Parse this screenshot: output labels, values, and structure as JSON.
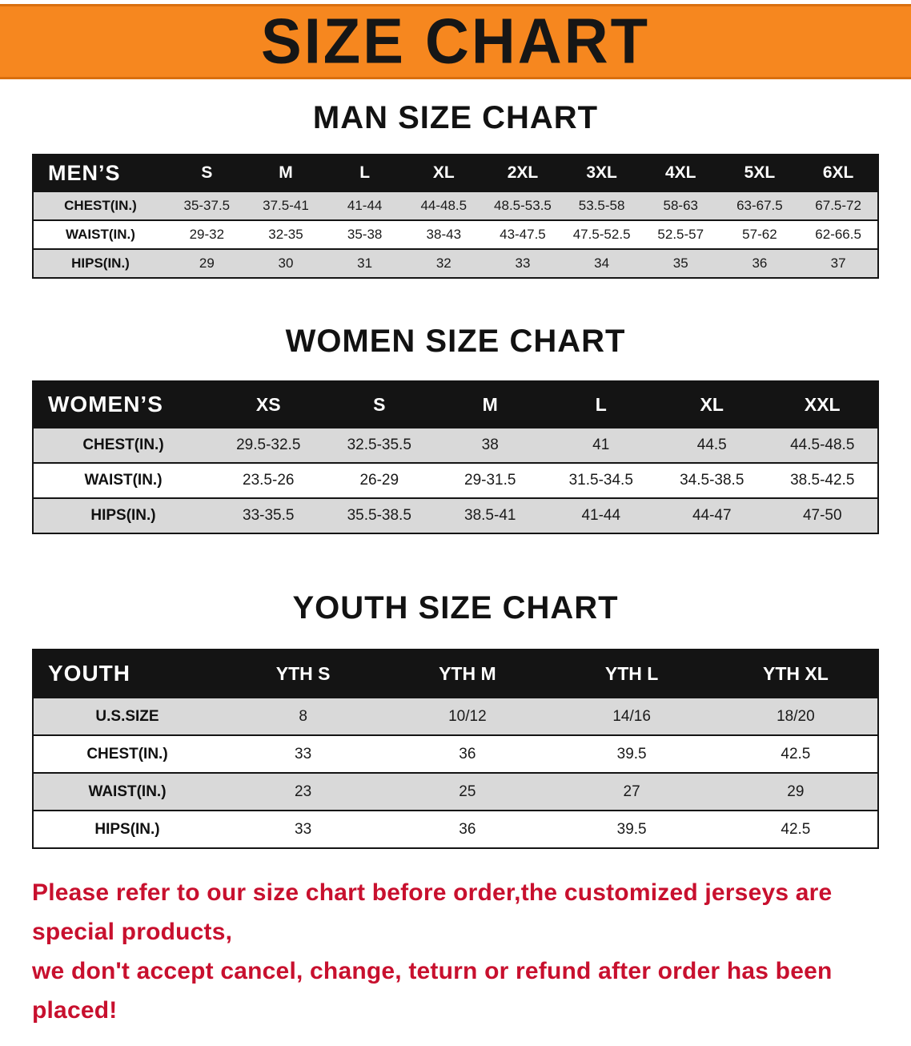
{
  "colors": {
    "banner_bg": "#f6871f",
    "banner_border": "#d96f0e",
    "header_bg": "#141414",
    "shade_row": "#d9d9d9",
    "disclaimer_red": "#c8102e"
  },
  "banner": {
    "title": "SIZE CHART"
  },
  "sections": [
    {
      "id": "men",
      "heading": "MAN SIZE CHART",
      "table": {
        "header_label": "MEN’S",
        "columns": [
          "S",
          "M",
          "L",
          "XL",
          "2XL",
          "3XL",
          "4XL",
          "5XL",
          "6XL"
        ],
        "rows": [
          {
            "label": "CHEST(IN.)",
            "values": [
              "35-37.5",
              "37.5-41",
              "41-44",
              "44-48.5",
              "48.5-53.5",
              "53.5-58",
              "58-63",
              "63-67.5",
              "67.5-72"
            ]
          },
          {
            "label": "WAIST(IN.)",
            "values": [
              "29-32",
              "32-35",
              "35-38",
              "38-43",
              "43-47.5",
              "47.5-52.5",
              "52.5-57",
              "57-62",
              "62-66.5"
            ]
          },
          {
            "label": "HIPS(IN.)",
            "values": [
              "29",
              "30",
              "31",
              "32",
              "33",
              "34",
              "35",
              "36",
              "37"
            ]
          }
        ]
      }
    },
    {
      "id": "women",
      "heading": "WOMEN SIZE CHART",
      "table": {
        "header_label": "WOMEN’S",
        "columns": [
          "XS",
          "S",
          "M",
          "L",
          "XL",
          "XXL"
        ],
        "rows": [
          {
            "label": "CHEST(IN.)",
            "values": [
              "29.5-32.5",
              "32.5-35.5",
              "38",
              "41",
              "44.5",
              "44.5-48.5"
            ]
          },
          {
            "label": "WAIST(IN.)",
            "values": [
              "23.5-26",
              "26-29",
              "29-31.5",
              "31.5-34.5",
              "34.5-38.5",
              "38.5-42.5"
            ]
          },
          {
            "label": "HIPS(IN.)",
            "values": [
              "33-35.5",
              "35.5-38.5",
              "38.5-41",
              "41-44",
              "44-47",
              "47-50"
            ]
          }
        ]
      }
    },
    {
      "id": "youth",
      "heading": "YOUTH SIZE CHART",
      "table": {
        "header_label": "YOUTH",
        "columns": [
          "YTH S",
          "YTH M",
          "YTH L",
          "YTH XL"
        ],
        "rows": [
          {
            "label": "U.S.SIZE",
            "values": [
              "8",
              "10/12",
              "14/16",
              "18/20"
            ]
          },
          {
            "label": "CHEST(IN.)",
            "values": [
              "33",
              "36",
              "39.5",
              "42.5"
            ]
          },
          {
            "label": "WAIST(IN.)",
            "values": [
              "23",
              "25",
              "27",
              "29"
            ]
          },
          {
            "label": "HIPS(IN.)",
            "values": [
              "33",
              "36",
              "39.5",
              "42.5"
            ]
          }
        ]
      }
    }
  ],
  "footer": {
    "line1": "Please refer to our size chart before order,the customized jerseys are special products,",
    "line2": "we don't accept cancel, change, teturn or refund after order has been placed!"
  }
}
